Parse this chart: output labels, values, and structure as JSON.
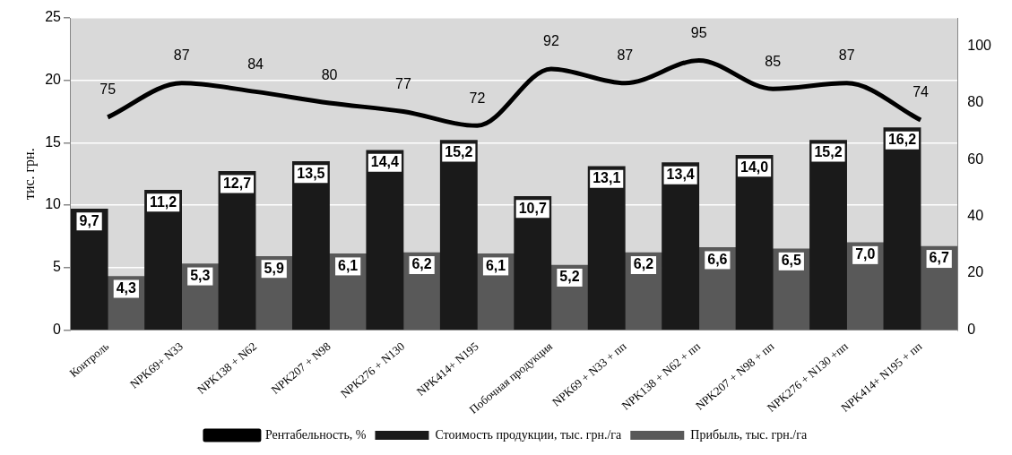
{
  "chart_data": {
    "type": "bar",
    "ylabel": "тис. грн.",
    "categories": [
      "Контроль",
      "NPK69+ N33",
      "NPK138 + N62",
      "NPK207 + N98",
      "NPK276 + N130",
      "NPK414+ N195",
      "Побочная продукция",
      "NPK69 + N33 + пп",
      "NPK138 + N62 + пп",
      "NPK207 + N98 + пп",
      "NPK276 + N130 +пп",
      "NPK414+ N195 + пп"
    ],
    "series": [
      {
        "name": "Стоимость продукции, тыс. грн./га",
        "color": "#1a1a1a",
        "values": [
          9.7,
          11.2,
          12.7,
          13.5,
          14.4,
          15.2,
          10.7,
          13.1,
          13.4,
          14.0,
          15.2,
          16.2
        ],
        "value_labels": [
          "9,7",
          "11,2",
          "12,7",
          "13,5",
          "14,4",
          "15,2",
          "10,7",
          "13,1",
          "13,4",
          "14,0",
          "15,2",
          "16,2"
        ]
      },
      {
        "name": "Прибыль, тыс. грн./га",
        "color": "#595959",
        "values": [
          4.3,
          5.3,
          5.9,
          6.1,
          6.2,
          6.1,
          5.2,
          6.2,
          6.6,
          6.5,
          7.0,
          6.7
        ],
        "value_labels": [
          "4,3",
          "5,3",
          "5,9",
          "6,1",
          "6,2",
          "6,1",
          "5,2",
          "6,2",
          "6,6",
          "6,5",
          "7,0",
          "6,7"
        ]
      },
      {
        "name": "Рентабельность, %",
        "type": "line",
        "axis": "y2",
        "color": "#000000",
        "values": [
          75,
          87,
          84,
          80,
          77,
          72,
          92,
          87,
          95,
          85,
          87,
          74
        ],
        "value_labels": [
          "75",
          "87",
          "84",
          "80",
          "77",
          "72",
          "92",
          "87",
          "95",
          "85",
          "87",
          "74"
        ]
      }
    ],
    "ylim": [
      0,
      25
    ],
    "yticks": [
      0,
      5,
      10,
      15,
      20,
      25
    ],
    "y2lim": [
      0,
      110
    ],
    "y2ticks": [
      0,
      20,
      40,
      60,
      80,
      100
    ],
    "grid": "y",
    "legend": "bottom",
    "marker": "none",
    "line_style": "solid"
  }
}
